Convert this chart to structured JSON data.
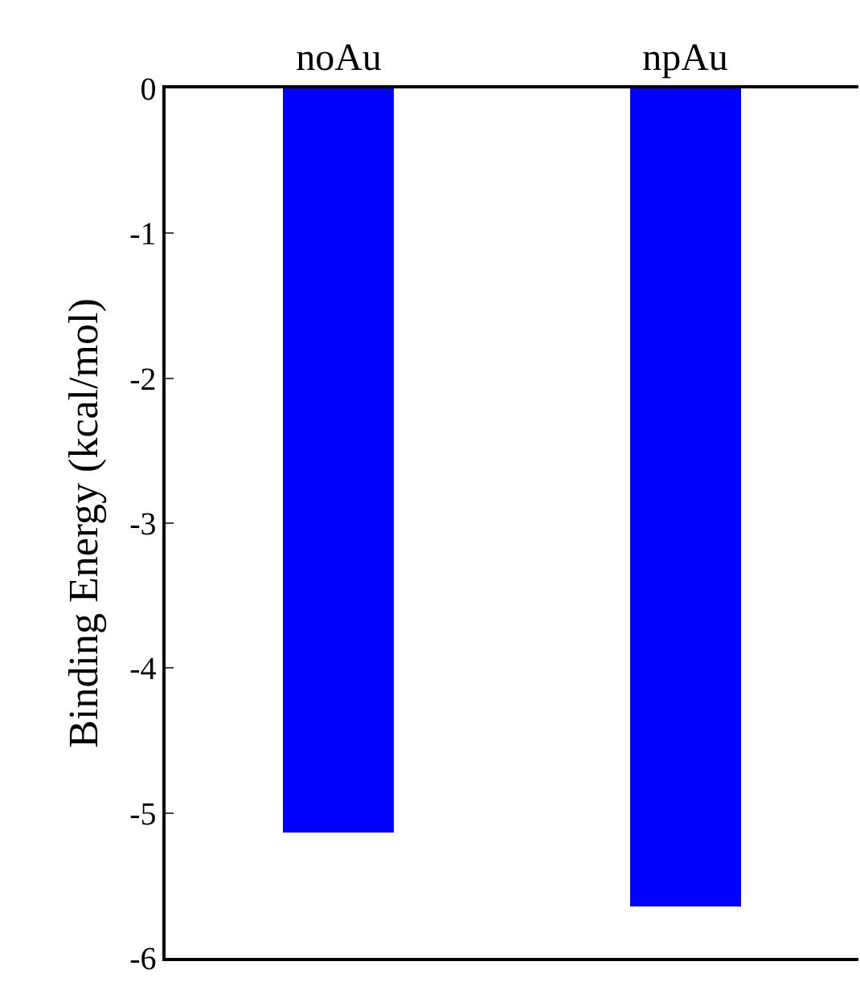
{
  "chart_data": {
    "type": "bar",
    "categories": [
      "noAu",
      "npAu"
    ],
    "values": [
      -5.13,
      -5.64
    ],
    "color": "#0000ff",
    "ylabel": "Binding Energy (kcal/mol)",
    "ylim": [
      -6,
      0
    ],
    "yticks": [
      -6,
      -5,
      -4,
      -3,
      -2,
      -1,
      0
    ],
    "grid": false,
    "legend": false
  }
}
